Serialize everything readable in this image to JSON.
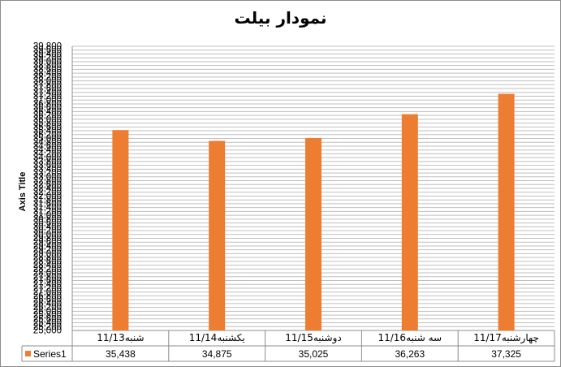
{
  "chart_data": {
    "type": "bar",
    "title": "نمودار بیلت",
    "ylabel": "Axis Title",
    "xlabel": "",
    "ylim": [
      25000,
      39800
    ],
    "ytick_step": 200,
    "categories": [
      "شنبه11/13",
      "یکشنبه11/14",
      "دوشنبه11/15",
      "سه شنبه11/16",
      "چهارشنبه11/17"
    ],
    "series": [
      {
        "name": "Series1",
        "values": [
          35438,
          34875,
          35025,
          36263,
          37325
        ],
        "value_labels": [
          "35,438",
          "34,875",
          "35,025",
          "36,263",
          "37,325"
        ],
        "color": "#ed7d31"
      }
    ],
    "grid": true,
    "legend": "data-table"
  }
}
